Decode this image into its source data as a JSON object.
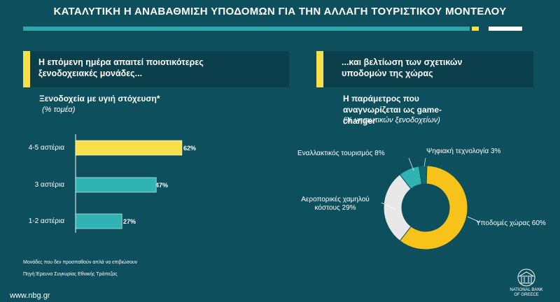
{
  "page": {
    "title": "ΚΑΤΑΛΥΤΙΚΗ Η ΑΝΑΒΑΘΜΙΣΗ ΥΠΟΔΟΜΩΝ ΓΙΑ ΤΗΝ ΑΛΛΑΓΗ ΤΟΥΡΙΣΤΙΚΟΥ ΜΟΝΤΕΛΟΥ",
    "left_box": "Η επόμενη ημέρα απαιτεί ποιοτικότερες ξενοδοχειακές μονάδες...",
    "right_box": "...και βελτίωση των σχετικών υποδομών της χώρας",
    "footnote": "Μονάδες που δεν προσπαθούν απλά να επιβιώσουν",
    "source": "Πηγή:Έρευνα Συγκυρίας Εθνικής Τράπεζας",
    "website": "www.nbg.gr",
    "logo_text": "NATIONAL BANK OF GREECE",
    "colors": {
      "background": "#0d4f5c",
      "teal": "#2fb3b3",
      "yellow": "#f7e04a",
      "light": "#e8e8e8",
      "dark": "#0b3f4b"
    }
  },
  "chart_data": [
    {
      "type": "bar",
      "title": "Ξενοδοχεία με υγιή στόχευση*",
      "subtitle": "(% τομέα)",
      "categories": [
        "4-5 αστέρια",
        "3 αστέρια",
        "1-2 αστέρια"
      ],
      "values": [
        62,
        47,
        27
      ],
      "value_labels": [
        "62%",
        "47%",
        "27%"
      ],
      "colors": [
        "#f7e04a",
        "#2fb3b3",
        "#2fb3b3"
      ]
    },
    {
      "type": "pie",
      "title": "Η παράμετρος που αναγνωρίζεται ως game-changer",
      "subtitle": "(% νησιωτικών ξενοδοχείων)",
      "labels": [
        "Υποδομές χώρας 60%",
        "Αεροπορικές χαμηλού κόστους 29%",
        "Εναλλακτικός τουρισμός 8%",
        "Ψηφιακή τεχνολογία 3%"
      ],
      "values": [
        60,
        29,
        8,
        3
      ],
      "colors": [
        "#f7c21a",
        "#e8e8e8",
        "#2fb3b3",
        "#0d6b73"
      ]
    }
  ]
}
